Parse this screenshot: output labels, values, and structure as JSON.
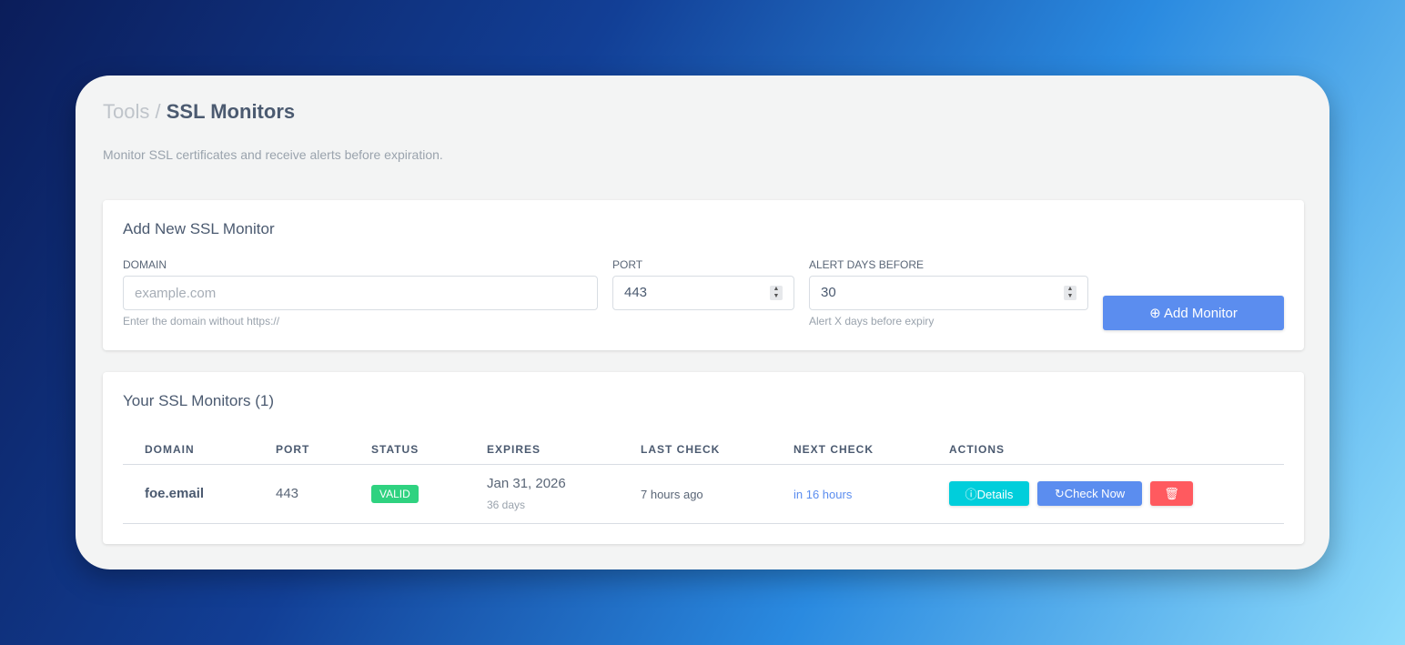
{
  "breadcrumb": {
    "parent": "Tools",
    "separator": "/",
    "current": "SSL Monitors"
  },
  "subtitle": "Monitor SSL certificates and receive alerts before expiration.",
  "form": {
    "title": "Add New SSL Monitor",
    "domain_label": "DOMAIN",
    "domain_placeholder": "example.com",
    "domain_hint": "Enter the domain without https://",
    "port_label": "PORT",
    "port_value": "443",
    "alert_label": "ALERT DAYS BEFORE",
    "alert_value": "30",
    "alert_hint": "Alert X days before expiry",
    "add_button": "Add Monitor"
  },
  "list": {
    "title": "Your SSL Monitors (1)",
    "columns": [
      "DOMAIN",
      "PORT",
      "STATUS",
      "EXPIRES",
      "LAST CHECK",
      "NEXT CHECK",
      "ACTIONS"
    ],
    "rows": [
      {
        "domain": "foe.email",
        "port": "443",
        "status": "VALID",
        "expires": "Jan 31, 2026",
        "expires_in": "36 days",
        "last_check": "7 hours ago",
        "next_check": "in 16 hours",
        "details": "Details",
        "check_now": "Check Now"
      }
    ]
  },
  "colors": {
    "primary": "#5b8def",
    "info": "#00cedb",
    "danger": "#ff5a5f",
    "success": "#2fd280"
  }
}
